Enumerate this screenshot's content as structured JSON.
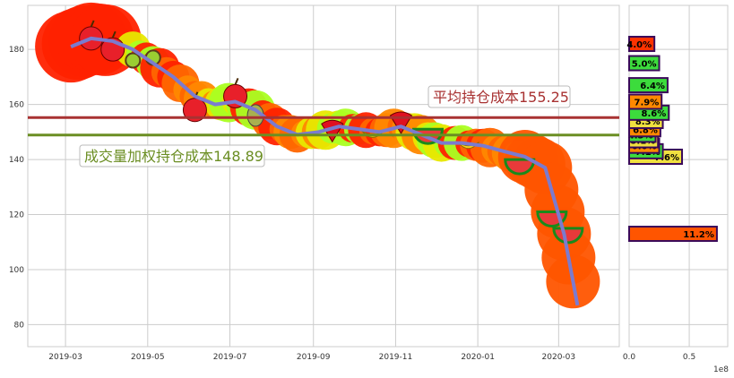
{
  "chart_data": [
    {
      "type": "line",
      "x_ticks": [
        "2019-03",
        "2019-05",
        "2019-07",
        "2019-09",
        "2019-11",
        "2020-01",
        "2020-03"
      ],
      "y_ticks": [
        80,
        100,
        120,
        140,
        160,
        180
      ],
      "ylim": [
        72,
        196
      ],
      "xlim": [
        "2019-02-01",
        "2020-04-15"
      ],
      "grid": true,
      "series": [
        {
          "color": "#7b7bcf",
          "x": [
            "2019-03-05",
            "2019-03-20",
            "2019-04-05",
            "2019-04-20",
            "2019-05-05",
            "2019-05-20",
            "2019-06-05",
            "2019-06-20",
            "2019-07-05",
            "2019-07-20",
            "2019-08-05",
            "2019-08-20",
            "2019-09-05",
            "2019-09-20",
            "2019-10-05",
            "2019-10-20",
            "2019-11-05",
            "2019-11-20",
            "2019-12-05",
            "2019-12-20",
            "2020-01-05",
            "2020-01-20",
            "2020-02-05",
            "2020-02-20",
            "2020-03-05",
            "2020-03-15"
          ],
          "values": [
            181,
            184,
            183,
            180,
            175,
            170,
            163,
            160,
            161,
            158,
            152,
            149,
            150,
            152,
            151,
            150,
            152,
            149,
            146,
            146,
            145,
            143,
            141,
            137,
            113,
            87
          ]
        }
      ],
      "hlines": [
        {
          "value": 155.25,
          "color": "#a83232",
          "label": "平均持仓成本155.25"
        },
        {
          "value": 148.89,
          "color": "#6b8e23",
          "label": "成交量加权持仓成本148.89"
        }
      ]
    },
    {
      "type": "bar",
      "orientation": "horizontal",
      "x_ticks": [
        "0.0",
        "0.5"
      ],
      "x_scale_label": "1e8",
      "xlim": [
        0,
        0.82
      ],
      "ylim": [
        72,
        196
      ],
      "bars": [
        {
          "price": 113,
          "value": 0.73,
          "label": "11.2%",
          "color": "#ff5500"
        },
        {
          "price": 141,
          "value": 0.44,
          "label": "7.6%",
          "color": "#f0e040"
        },
        {
          "price": 143,
          "value": 0.28,
          "label": "7.1%",
          "color": "#3cdc3c"
        },
        {
          "price": 145,
          "value": 0.25,
          "label": "6.6%",
          "color": "#ff8800"
        },
        {
          "price": 147,
          "value": 0.24,
          "label": "5.1%",
          "color": "#f0e040"
        },
        {
          "price": 149,
          "value": 0.22,
          "label": "4.3%",
          "color": "#3cdc3c"
        },
        {
          "price": 151,
          "value": 0.26,
          "label": "6.8%",
          "color": "#ff8800"
        },
        {
          "price": 154,
          "value": 0.28,
          "label": "8.3%",
          "color": "#f0e040"
        },
        {
          "price": 157,
          "value": 0.33,
          "label": "8.6%",
          "color": "#3cdc3c"
        },
        {
          "price": 161,
          "value": 0.27,
          "label": "7.9%",
          "color": "#ff8800"
        },
        {
          "price": 167,
          "value": 0.32,
          "label": "6.4%",
          "color": "#3cdc3c"
        },
        {
          "price": 175,
          "value": 0.25,
          "label": "5.0%",
          "color": "#3cdc3c"
        },
        {
          "price": 182,
          "value": 0.21,
          "label": "4.0%",
          "color": "#ff3300"
        }
      ]
    }
  ]
}
